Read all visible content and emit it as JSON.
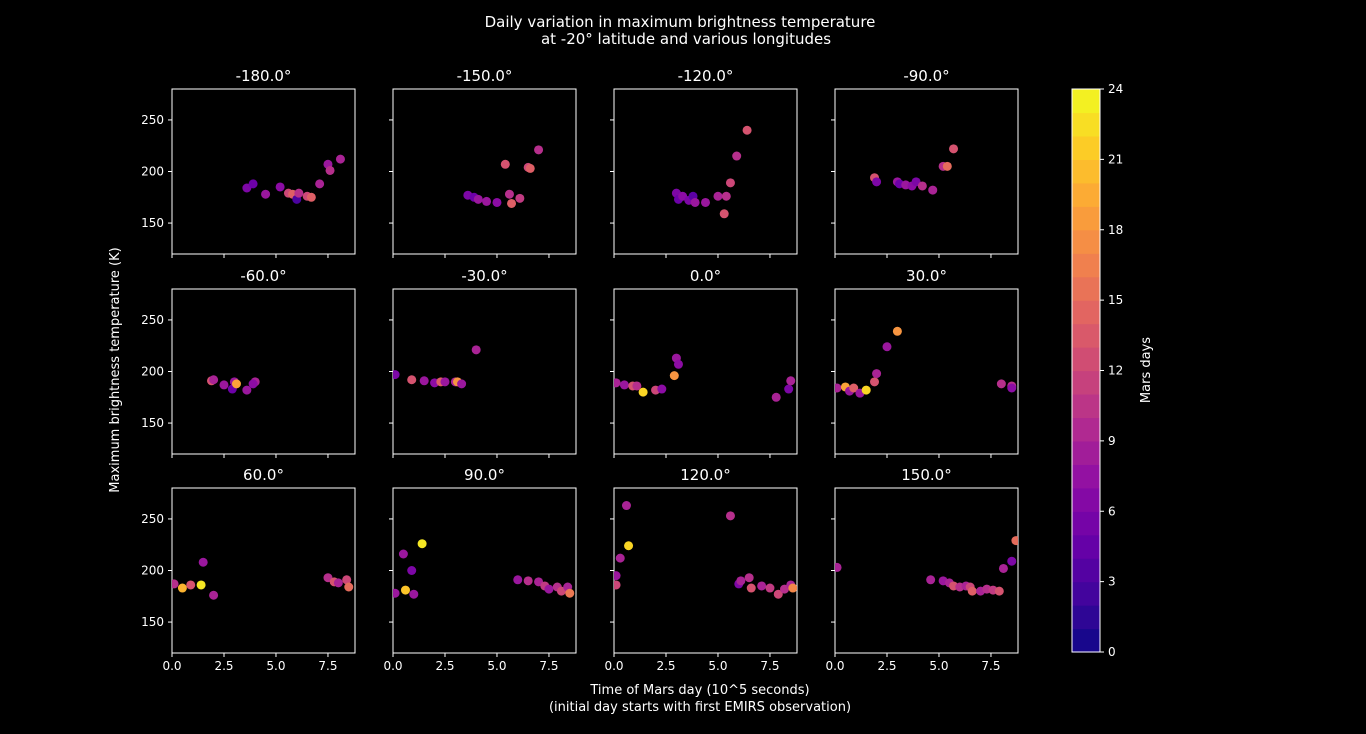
{
  "figure": {
    "title_line1": "Daily variation in maximum brightness temperature",
    "title_line2": "at -20° latitude and various longitudes",
    "xlabel_line1": "Time of Mars day (10^5 seconds)",
    "xlabel_line2": "(initial day starts with first EMIRS observation)",
    "ylabel": "Maximum brightness temperature (K)",
    "background": "#000000",
    "foreground": "#ffffff"
  },
  "colorbar": {
    "label": "Mars days",
    "colormap": "plasma",
    "range": [
      0,
      24
    ],
    "levels": 24,
    "ticks": [
      "0",
      "3",
      "6",
      "9",
      "12",
      "15",
      "18",
      "21",
      "24"
    ]
  },
  "axes": {
    "xlim": [
      0,
      8.8
    ],
    "ylim": [
      120,
      280
    ],
    "xticks": [
      0,
      2.5,
      5,
      7.5
    ],
    "xtick_labels": [
      "0.0",
      "2.5",
      "5.0",
      "7.5"
    ],
    "yticks": [
      150,
      200,
      250
    ],
    "ytick_labels": [
      "150",
      "200",
      "250"
    ]
  },
  "chart_data": [
    {
      "type": "scatter",
      "title": "-180.0°",
      "points": [
        [
          3.6,
          184,
          6
        ],
        [
          3.9,
          188,
          5
        ],
        [
          4.5,
          178,
          8
        ],
        [
          5.2,
          185,
          7
        ],
        [
          5.6,
          179,
          12
        ],
        [
          5.8,
          178,
          14
        ],
        [
          6.0,
          173,
          3
        ],
        [
          6.1,
          179,
          10
        ],
        [
          6.5,
          176,
          12
        ],
        [
          6.7,
          175,
          14
        ],
        [
          7.1,
          188,
          9
        ],
        [
          7.5,
          207,
          8
        ],
        [
          7.6,
          201,
          10
        ],
        [
          8.1,
          212,
          9
        ]
      ]
    },
    {
      "type": "scatter",
      "title": "-150.0°",
      "points": [
        [
          3.6,
          177,
          6
        ],
        [
          3.9,
          175,
          5
        ],
        [
          4.1,
          173,
          8
        ],
        [
          4.5,
          171,
          8
        ],
        [
          5.0,
          170,
          7
        ],
        [
          5.4,
          207,
          13
        ],
        [
          5.6,
          178,
          10
        ],
        [
          5.7,
          169,
          14
        ],
        [
          6.1,
          174,
          11
        ],
        [
          6.5,
          204,
          12
        ],
        [
          6.6,
          203,
          14
        ],
        [
          7.0,
          221,
          10
        ]
      ]
    },
    {
      "type": "scatter",
      "title": "-120.0°",
      "points": [
        [
          3.0,
          179,
          6
        ],
        [
          3.1,
          173,
          5
        ],
        [
          3.3,
          176,
          7
        ],
        [
          3.6,
          172,
          6
        ],
        [
          3.8,
          176,
          4
        ],
        [
          3.9,
          170,
          8
        ],
        [
          4.4,
          170,
          8
        ],
        [
          5.0,
          176,
          9
        ],
        [
          5.3,
          159,
          13
        ],
        [
          5.4,
          176,
          10
        ],
        [
          5.6,
          189,
          12
        ],
        [
          5.9,
          215,
          10
        ],
        [
          6.4,
          240,
          13
        ]
      ]
    },
    {
      "type": "scatter",
      "title": "-90.0°",
      "points": [
        [
          1.9,
          194,
          13
        ],
        [
          2.0,
          190,
          6
        ],
        [
          3.0,
          190,
          8
        ],
        [
          3.1,
          188,
          5
        ],
        [
          3.4,
          187,
          8
        ],
        [
          3.7,
          186,
          7
        ],
        [
          3.9,
          190,
          6
        ],
        [
          4.2,
          186,
          10
        ],
        [
          4.7,
          182,
          9
        ],
        [
          5.2,
          205,
          10
        ],
        [
          5.4,
          205,
          15
        ],
        [
          5.7,
          222,
          13
        ]
      ]
    },
    {
      "type": "scatter",
      "title": "-60.0°",
      "points": [
        [
          1.9,
          191,
          13
        ],
        [
          2.0,
          192,
          9
        ],
        [
          2.5,
          187,
          8
        ],
        [
          2.9,
          183,
          5
        ],
        [
          3.0,
          190,
          8
        ],
        [
          3.1,
          188,
          19
        ],
        [
          3.6,
          182,
          8
        ],
        [
          4.0,
          190,
          9
        ],
        [
          3.9,
          188,
          7
        ]
      ]
    },
    {
      "type": "scatter",
      "title": "-30.0°",
      "points": [
        [
          0.1,
          197,
          6
        ],
        [
          0.9,
          192,
          13
        ],
        [
          1.5,
          191,
          8
        ],
        [
          2.0,
          189,
          7
        ],
        [
          2.3,
          190,
          14
        ],
        [
          2.5,
          190,
          8
        ],
        [
          3.0,
          190,
          9
        ],
        [
          3.1,
          190,
          18
        ],
        [
          3.3,
          188,
          8
        ],
        [
          4.0,
          221,
          9
        ]
      ]
    },
    {
      "type": "scatter",
      "title": "0.0°",
      "points": [
        [
          0.1,
          189,
          9
        ],
        [
          0.5,
          187,
          8
        ],
        [
          0.9,
          186,
          13
        ],
        [
          1.1,
          186,
          10
        ],
        [
          1.4,
          180,
          22
        ],
        [
          2.0,
          182,
          12
        ],
        [
          2.3,
          183,
          7
        ],
        [
          2.9,
          196,
          18
        ],
        [
          3.0,
          213,
          8
        ],
        [
          3.1,
          207,
          7
        ],
        [
          7.8,
          175,
          9
        ],
        [
          8.4,
          183,
          6
        ],
        [
          8.5,
          191,
          9
        ]
      ]
    },
    {
      "type": "scatter",
      "title": "30.0°",
      "points": [
        [
          0.1,
          184,
          9
        ],
        [
          0.5,
          185,
          19
        ],
        [
          0.7,
          181,
          8
        ],
        [
          0.9,
          184,
          14
        ],
        [
          1.2,
          179,
          8
        ],
        [
          1.5,
          182,
          22
        ],
        [
          1.9,
          190,
          13
        ],
        [
          2.0,
          198,
          9
        ],
        [
          2.5,
          224,
          8
        ],
        [
          3.0,
          239,
          18
        ],
        [
          8.0,
          188,
          10
        ],
        [
          8.5,
          186,
          10
        ],
        [
          8.5,
          184,
          7
        ]
      ]
    },
    {
      "type": "scatter",
      "title": "60.0°",
      "points": [
        [
          0.1,
          187,
          10
        ],
        [
          0.5,
          183,
          20
        ],
        [
          0.9,
          186,
          13
        ],
        [
          1.4,
          186,
          23
        ],
        [
          1.5,
          208,
          8
        ],
        [
          2.0,
          176,
          9
        ],
        [
          7.5,
          193,
          10
        ],
        [
          7.8,
          189,
          13
        ],
        [
          8.0,
          188,
          9
        ],
        [
          8.4,
          191,
          12
        ],
        [
          8.5,
          184,
          15
        ]
      ]
    },
    {
      "type": "scatter",
      "title": "90.0°",
      "points": [
        [
          0.1,
          178,
          8
        ],
        [
          0.5,
          216,
          8
        ],
        [
          0.6,
          181,
          21
        ],
        [
          0.9,
          200,
          6
        ],
        [
          1.0,
          177,
          8
        ],
        [
          1.4,
          226,
          23
        ],
        [
          6.0,
          191,
          8
        ],
        [
          6.5,
          190,
          10
        ],
        [
          7.0,
          189,
          9
        ],
        [
          7.3,
          185,
          11
        ],
        [
          7.5,
          182,
          8
        ],
        [
          7.9,
          184,
          10
        ],
        [
          8.1,
          180,
          12
        ],
        [
          8.4,
          184,
          9
        ],
        [
          8.5,
          178,
          16
        ]
      ]
    },
    {
      "type": "scatter",
      "title": "120.0°",
      "points": [
        [
          0.1,
          186,
          12
        ],
        [
          0.1,
          195,
          8
        ],
        [
          0.3,
          212,
          9
        ],
        [
          0.6,
          263,
          9
        ],
        [
          0.7,
          224,
          22
        ],
        [
          5.6,
          253,
          10
        ],
        [
          6.0,
          187,
          6
        ],
        [
          6.1,
          190,
          9
        ],
        [
          6.5,
          193,
          10
        ],
        [
          6.6,
          183,
          13
        ],
        [
          7.1,
          185,
          9
        ],
        [
          7.5,
          183,
          11
        ],
        [
          7.9,
          177,
          12
        ],
        [
          8.2,
          182,
          10
        ],
        [
          8.5,
          186,
          9
        ],
        [
          8.6,
          183,
          17
        ]
      ]
    },
    {
      "type": "scatter",
      "title": "150.0°",
      "points": [
        [
          0.1,
          203,
          9
        ],
        [
          4.6,
          191,
          9
        ],
        [
          5.2,
          190,
          8
        ],
        [
          5.5,
          188,
          9
        ],
        [
          5.7,
          185,
          13
        ],
        [
          6.0,
          184,
          10
        ],
        [
          6.3,
          185,
          9
        ],
        [
          6.5,
          184,
          12
        ],
        [
          6.6,
          180,
          14
        ],
        [
          7.0,
          180,
          9
        ],
        [
          7.3,
          182,
          10
        ],
        [
          7.6,
          181,
          11
        ],
        [
          7.9,
          180,
          13
        ],
        [
          8.1,
          202,
          9
        ],
        [
          8.5,
          209,
          6
        ],
        [
          8.7,
          229,
          15
        ]
      ]
    }
  ]
}
